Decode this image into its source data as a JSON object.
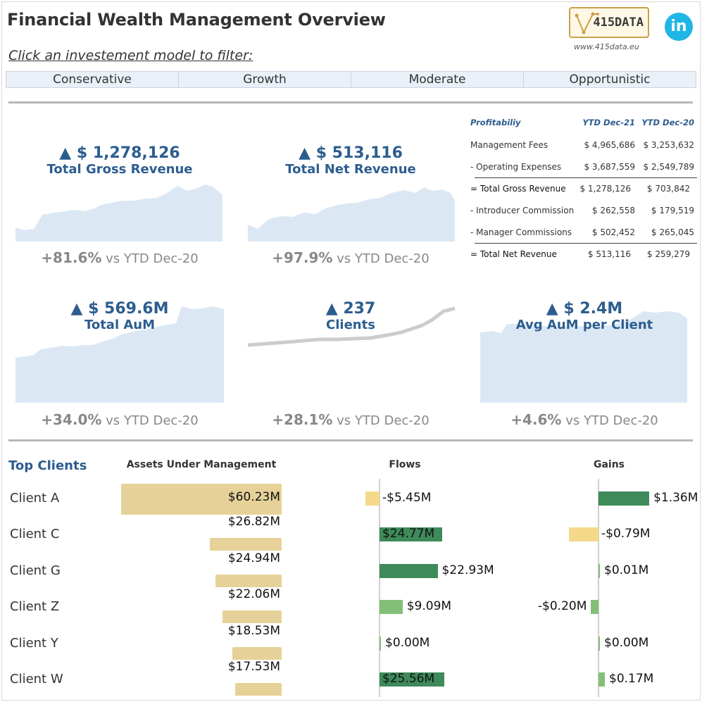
{
  "header": {
    "title": "Financial Wealth Management Overview",
    "filter_prompt": "Click an investement model to filter:",
    "logo_text": "415DATA",
    "logo_url": "www.415data.eu",
    "linkedin_label": "in"
  },
  "model_tabs": [
    "Conservative",
    "Growth",
    "Moderate",
    "Opportunistic"
  ],
  "kpis": {
    "gross_revenue": {
      "value": "▲ $ 1,278,126",
      "label": "Total Gross Revenue",
      "change": "+81.6%",
      "change_suffix": "vs YTD Dec-20"
    },
    "net_revenue": {
      "value": "▲ $ 513,116",
      "label": "Total Net Revenue",
      "change": "+97.9%",
      "change_suffix": "vs YTD Dec-20"
    },
    "aum": {
      "value": "▲ $ 569.6M",
      "label": "Total AuM",
      "change": "+34.0%",
      "change_suffix": "vs YTD Dec-20"
    },
    "clients": {
      "value": "▲ 237",
      "label": "Clients",
      "change": "+28.1%",
      "change_suffix": "vs YTD Dec-20"
    },
    "avg_aum": {
      "value": "▲ $ 2.4M",
      "label": "Avg AuM per Client",
      "change": "+4.6%",
      "change_suffix": "vs YTD Dec-20"
    }
  },
  "profitability": {
    "header": [
      "Profitabiliy",
      "YTD Dec-21",
      "YTD Dec-20"
    ],
    "rows": [
      {
        "label": "Management Fees",
        "dec21": "$ 4,965,686",
        "dec20": "$ 3,253,632"
      },
      {
        "label": "- Operating Expenses",
        "dec21": "$ 3,687,559",
        "dec20": "$ 2,549,789"
      },
      {
        "label": "= Total Gross Revenue",
        "dec21": "$ 1,278,126",
        "dec20": "$ 703,842"
      },
      {
        "label": "- Introducer Commission",
        "dec21": "$ 262,558",
        "dec20": "$ 179,519"
      },
      {
        "label": "- Manager Commissions",
        "dec21": "$ 502,452",
        "dec20": "$ 265,045"
      },
      {
        "label": "= Total Net Revenue",
        "dec21": "$ 513,116",
        "dec20": "$ 259,279"
      }
    ]
  },
  "top_clients": {
    "title": "Top Clients",
    "columns": [
      "Assets Under Management",
      "Flows",
      "Gains"
    ],
    "clients": [
      {
        "name": "Client A",
        "aum": 60.23,
        "aum_label": "$60.23M",
        "flow": -5.45,
        "flow_label": "-$5.45M",
        "gain": 1.36,
        "gain_label": "$1.36M"
      },
      {
        "name": "Client C",
        "aum": 26.82,
        "aum_label": "$26.82M",
        "flow": 24.77,
        "flow_label": "$24.77M",
        "gain": -0.79,
        "gain_label": "-$0.79M"
      },
      {
        "name": "Client G",
        "aum": 24.94,
        "aum_label": "$24.94M",
        "flow": 22.93,
        "flow_label": "$22.93M",
        "gain": 0.01,
        "gain_label": "$0.01M"
      },
      {
        "name": "Client Z",
        "aum": 22.06,
        "aum_label": "$22.06M",
        "flow": 9.09,
        "flow_label": "$9.09M",
        "gain": -0.2,
        "gain_label": "-$0.20M"
      },
      {
        "name": "Client Y",
        "aum": 18.53,
        "aum_label": "$18.53M",
        "flow": 0.0,
        "flow_label": "$0.00M",
        "gain": 0.0,
        "gain_label": "$0.00M"
      },
      {
        "name": "Client W",
        "aum": 17.53,
        "aum_label": "$17.53M",
        "flow": 25.56,
        "flow_label": "$25.56M",
        "gain": 0.17,
        "gain_label": "$0.17M"
      }
    ]
  },
  "colors": {
    "accent": "#2c5d8f",
    "area_fill": "#dbe8f4",
    "aum_bar": "#e6d298",
    "positive_strong": "#3e8a5a",
    "positive_light": "#84bf78",
    "negative": "#f5d98a",
    "clients_line": "#cccccc"
  }
}
